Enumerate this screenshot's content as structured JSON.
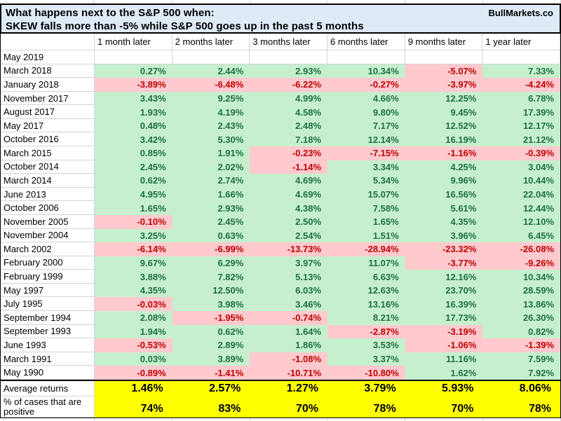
{
  "header": {
    "title_line1": "What happens next to the S&P 500 when:",
    "title_line2": "SKEW falls more than -5% while S&P 500 goes up in the past 5 months",
    "brand": "BullMarkets.co"
  },
  "chart_data": {
    "type": "table",
    "title": "What happens next to the S&P 500 when: SKEW falls more than -5% while S&P 500 goes up in the past 5 months",
    "columns": [
      "1 month later",
      "2 months later",
      "3 months later",
      "6 months later",
      "9 months later",
      "1 year later"
    ],
    "rows": [
      {
        "label": "May 2019",
        "values": [
          "",
          "",
          "",
          "",
          "",
          ""
        ]
      },
      {
        "label": "March 2018",
        "values": [
          "0.27%",
          "2.44%",
          "2.93%",
          "10.34%",
          "-5.07%",
          "7.33%"
        ]
      },
      {
        "label": "January 2018",
        "values": [
          "-3.89%",
          "-6.48%",
          "-6.22%",
          "-0.27%",
          "-3.97%",
          "-4.24%"
        ]
      },
      {
        "label": "November 2017",
        "values": [
          "3.43%",
          "9.25%",
          "4.99%",
          "4.66%",
          "12.25%",
          "6.78%"
        ]
      },
      {
        "label": "August 2017",
        "values": [
          "1.93%",
          "4.19%",
          "4.58%",
          "9.80%",
          "9.45%",
          "17.39%"
        ]
      },
      {
        "label": "May 2017",
        "values": [
          "0.48%",
          "2.43%",
          "2.48%",
          "7.17%",
          "12.52%",
          "12.17%"
        ]
      },
      {
        "label": "October 2016",
        "values": [
          "3.42%",
          "5.30%",
          "7.18%",
          "12.14%",
          "16.19%",
          "21.12%"
        ]
      },
      {
        "label": "March 2015",
        "values": [
          "0.85%",
          "1.91%",
          "-0.23%",
          "-7.15%",
          "-1.16%",
          "-0.39%"
        ]
      },
      {
        "label": "October 2014",
        "values": [
          "2.45%",
          "2.02%",
          "-1.14%",
          "3.34%",
          "4.25%",
          "3.04%"
        ]
      },
      {
        "label": "March 2014",
        "values": [
          "0.62%",
          "2.74%",
          "4.69%",
          "5.34%",
          "9.96%",
          "10.44%"
        ]
      },
      {
        "label": "June 2013",
        "values": [
          "4.95%",
          "1.66%",
          "4.69%",
          "15.07%",
          "16.56%",
          "22.04%"
        ]
      },
      {
        "label": "October 2006",
        "values": [
          "1.65%",
          "2.93%",
          "4.38%",
          "7.58%",
          "5.61%",
          "12.44%"
        ]
      },
      {
        "label": "November 2005",
        "values": [
          "-0.10%",
          "2.45%",
          "2.50%",
          "1.65%",
          "4.35%",
          "12.10%"
        ]
      },
      {
        "label": "November 2004",
        "values": [
          "3.25%",
          "0.63%",
          "2.54%",
          "1.51%",
          "3.96%",
          "6.45%"
        ]
      },
      {
        "label": "March 2002",
        "values": [
          "-6.14%",
          "-6.99%",
          "-13.73%",
          "-28.94%",
          "-23.32%",
          "-26.08%"
        ]
      },
      {
        "label": "February 2000",
        "values": [
          "9.67%",
          "6.29%",
          "3.97%",
          "11.07%",
          "-3.77%",
          "-9.26%"
        ]
      },
      {
        "label": "February 1999",
        "values": [
          "3.88%",
          "7.82%",
          "5.13%",
          "6.63%",
          "12.16%",
          "10.34%"
        ]
      },
      {
        "label": "May 1997",
        "values": [
          "4.35%",
          "12.50%",
          "6.03%",
          "12.63%",
          "23.70%",
          "28.59%"
        ]
      },
      {
        "label": "July 1995",
        "values": [
          "-0.03%",
          "3.98%",
          "3.46%",
          "13.16%",
          "16.39%",
          "13.86%"
        ]
      },
      {
        "label": "September 1994",
        "values": [
          "2.08%",
          "-1.95%",
          "-0.74%",
          "8.21%",
          "17.73%",
          "26.30%"
        ]
      },
      {
        "label": "September 1993",
        "values": [
          "1.94%",
          "0.62%",
          "1.64%",
          "-2.87%",
          "-3.19%",
          "0.82%"
        ]
      },
      {
        "label": "June 1993",
        "values": [
          "-0.53%",
          "2.89%",
          "1.86%",
          "3.53%",
          "-1.06%",
          "-1.39%"
        ]
      },
      {
        "label": "March 1991",
        "values": [
          "0.03%",
          "3.89%",
          "-1.08%",
          "3.37%",
          "11.16%",
          "7.59%"
        ]
      },
      {
        "label": "May 1990",
        "values": [
          "-0.89%",
          "-1.41%",
          "-10.71%",
          "-10.80%",
          "1.62%",
          "7.92%"
        ]
      }
    ],
    "summary": {
      "average_label": "Average returns",
      "average_values": [
        "1.46%",
        "2.57%",
        "1.27%",
        "3.79%",
        "5.93%",
        "8.06%"
      ],
      "positive_label": "% of cases that are positive",
      "positive_values": [
        "74%",
        "83%",
        "70%",
        "78%",
        "70%",
        "78%"
      ]
    }
  },
  "colors": {
    "title_bg": "#deeaf6",
    "positive_bg": "#c6efce",
    "positive_text": "#1d7044",
    "negative_bg": "#ffc9ce",
    "negative_text": "#c00000",
    "summary_bg": "#ffff00"
  }
}
